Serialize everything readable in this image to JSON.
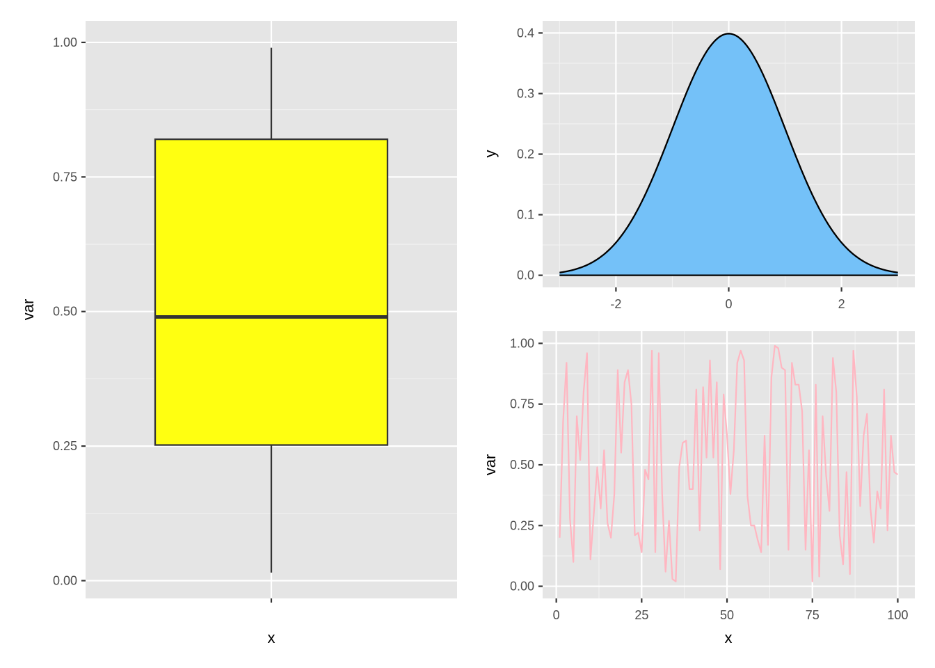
{
  "chart_data": [
    {
      "type": "box",
      "xlabel": "x",
      "ylabel": "var",
      "ylim": [
        -0.033,
        1.04
      ],
      "yticks": [
        "0.00",
        "0.25",
        "0.50",
        "0.75",
        "1.00"
      ],
      "ytick_values": [
        0,
        0.25,
        0.5,
        0.75,
        1.0
      ],
      "box": {
        "lower_whisker": 0.015,
        "q1": 0.252,
        "median": 0.49,
        "q3": 0.82,
        "upper_whisker": 0.99
      },
      "fill_color": "#ffff11",
      "line_color": "#333333"
    },
    {
      "type": "area",
      "xlabel": "",
      "ylabel": "y",
      "xlim": [
        -3.3,
        3.3
      ],
      "ylim": [
        -0.02,
        0.42
      ],
      "xticks": [
        "-2",
        "0",
        "2"
      ],
      "xtick_values": [
        -2,
        0,
        2
      ],
      "yticks": [
        "0.0",
        "0.1",
        "0.2",
        "0.3",
        "0.4"
      ],
      "ytick_values": [
        0,
        0.1,
        0.2,
        0.3,
        0.4
      ],
      "x": [
        -3,
        -2.75,
        -2.5,
        -2.25,
        -2,
        -1.75,
        -1.5,
        -1.25,
        -1,
        -0.75,
        -0.5,
        -0.25,
        0,
        0.25,
        0.5,
        0.75,
        1,
        1.25,
        1.5,
        1.75,
        2,
        2.25,
        2.5,
        2.75,
        3
      ],
      "y": [
        0.0044,
        0.0091,
        0.0175,
        0.0317,
        0.054,
        0.0863,
        0.1295,
        0.1826,
        0.242,
        0.3011,
        0.3521,
        0.3867,
        0.3989,
        0.3867,
        0.3521,
        0.3011,
        0.242,
        0.1826,
        0.1295,
        0.0863,
        0.054,
        0.0317,
        0.0175,
        0.0091,
        0.0044
      ],
      "fill_color": "#74c1f8",
      "line_color": "#000000"
    },
    {
      "type": "line",
      "xlabel": "x",
      "ylabel": "var",
      "xlim": [
        -4,
        105
      ],
      "ylim": [
        -0.05,
        1.05
      ],
      "xticks": [
        "0",
        "25",
        "50",
        "75",
        "100"
      ],
      "xtick_values": [
        0,
        25,
        50,
        75,
        100
      ],
      "yticks": [
        "0.00",
        "0.25",
        "0.50",
        "0.75",
        "1.00"
      ],
      "ytick_values": [
        0,
        0.25,
        0.5,
        0.75,
        1.0
      ],
      "line_color": "#ffb6c1",
      "x": [
        1,
        2,
        3,
        4,
        5,
        6,
        7,
        8,
        9,
        10,
        11,
        12,
        13,
        14,
        15,
        16,
        17,
        18,
        19,
        20,
        21,
        22,
        23,
        24,
        25,
        26,
        27,
        28,
        29,
        30,
        31,
        32,
        33,
        34,
        35,
        36,
        37,
        38,
        39,
        40,
        41,
        42,
        43,
        44,
        45,
        46,
        47,
        48,
        49,
        50,
        51,
        52,
        53,
        54,
        55,
        56,
        57,
        58,
        59,
        60,
        61,
        62,
        63,
        64,
        65,
        66,
        67,
        68,
        69,
        70,
        71,
        72,
        73,
        74,
        75,
        76,
        77,
        78,
        79,
        80,
        81,
        82,
        83,
        84,
        85,
        86,
        87,
        88,
        89,
        90,
        91,
        92,
        93,
        94,
        95,
        96,
        97,
        98,
        99,
        100
      ],
      "y": [
        0.2,
        0.68,
        0.92,
        0.28,
        0.1,
        0.7,
        0.52,
        0.8,
        0.96,
        0.11,
        0.3,
        0.49,
        0.32,
        0.56,
        0.26,
        0.2,
        0.38,
        0.89,
        0.55,
        0.84,
        0.89,
        0.75,
        0.21,
        0.22,
        0.14,
        0.48,
        0.44,
        0.97,
        0.14,
        0.96,
        0.38,
        0.06,
        0.27,
        0.03,
        0.02,
        0.49,
        0.59,
        0.6,
        0.4,
        0.4,
        0.81,
        0.23,
        0.82,
        0.53,
        0.93,
        0.53,
        0.84,
        0.07,
        0.79,
        0.62,
        0.38,
        0.56,
        0.92,
        0.97,
        0.93,
        0.37,
        0.25,
        0.25,
        0.19,
        0.14,
        0.62,
        0.17,
        0.86,
        0.99,
        0.98,
        0.9,
        0.89,
        0.15,
        0.92,
        0.83,
        0.83,
        0.72,
        0.15,
        0.56,
        0.02,
        0.83,
        0.04,
        0.7,
        0.46,
        0.31,
        0.94,
        0.8,
        0.21,
        0.09,
        0.47,
        0.05,
        0.97,
        0.78,
        0.33,
        0.62,
        0.71,
        0.32,
        0.18,
        0.39,
        0.32,
        0.81,
        0.23,
        0.62,
        0.47,
        0.46
      ]
    }
  ]
}
